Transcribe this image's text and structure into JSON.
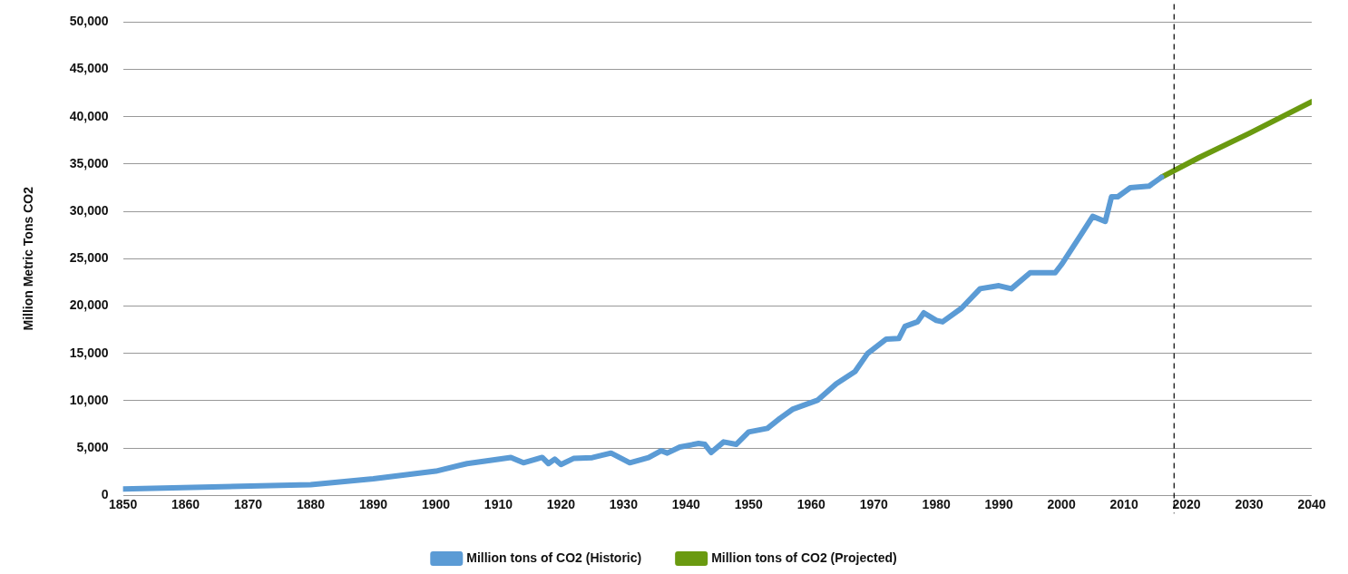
{
  "chart_data": {
    "type": "line",
    "ylabel": "Million Metric Tons CO2",
    "xlim": [
      1850,
      2040
    ],
    "xticks": [
      1850,
      1860,
      1870,
      1880,
      1890,
      1900,
      1910,
      1920,
      1930,
      1940,
      1950,
      1960,
      1970,
      1980,
      1990,
      2000,
      2010,
      2020,
      2030,
      2040
    ],
    "ylim": [
      0,
      50000
    ],
    "yticks": [
      {
        "value": 0,
        "label": "0"
      },
      {
        "value": 5000,
        "label": "5,000"
      },
      {
        "value": 10000,
        "label": "10,000"
      },
      {
        "value": 15000,
        "label": "15,000"
      },
      {
        "value": 20000,
        "label": "20,000"
      },
      {
        "value": 25000,
        "label": "25,000"
      },
      {
        "value": 30000,
        "label": "30,000"
      },
      {
        "value": 35000,
        "label": "35,000"
      },
      {
        "value": 40000,
        "label": "40,000"
      },
      {
        "value": 45000,
        "label": "45,000"
      },
      {
        "value": 50000,
        "label": "50,000"
      }
    ],
    "grid": "y",
    "legend": "bottom",
    "marker": "none",
    "line_style": "solid",
    "ref_lines": [
      {
        "axis": "x",
        "value": 2018,
        "color": "#000000",
        "line_style": "dashed"
      }
    ],
    "series": [
      {
        "name": "Million tons of CO2 (Historic)",
        "color": "#5b9bd5",
        "x": [
          1850,
          1880,
          1890,
          1900,
          1905,
          1912,
          1914,
          1917,
          1918,
          1919,
          1920,
          1922,
          1925,
          1928,
          1931,
          1934,
          1936,
          1937,
          1939,
          1942,
          1943,
          1944,
          1946,
          1948,
          1950,
          1953,
          1955,
          1957,
          1959,
          1961,
          1964,
          1967,
          1969,
          1972,
          1974,
          1975,
          1977,
          1978,
          1980,
          1981,
          1984,
          1987,
          1990,
          1992,
          1995,
          1999,
          2000,
          2003,
          2005,
          2007,
          2008,
          2009,
          2011,
          2014,
          2016
        ],
        "values": [
          670,
          1120,
          1750,
          2550,
          3350,
          3990,
          3440,
          4000,
          3350,
          3820,
          3250,
          3890,
          3980,
          4460,
          3440,
          3980,
          4710,
          4460,
          5100,
          5480,
          5380,
          4520,
          5640,
          5380,
          6690,
          7070,
          8130,
          9080,
          9560,
          10040,
          11790,
          13070,
          14980,
          16510,
          16570,
          17850,
          18330,
          19280,
          18480,
          18330,
          19760,
          21830,
          22150,
          21830,
          23520,
          23520,
          24380,
          27410,
          29470,
          28940,
          31550,
          31550,
          32500,
          32670,
          33620
        ]
      },
      {
        "name": "Million tons of CO2 (Projected)",
        "color": "#6a9a10",
        "x": [
          2016,
          2022,
          2030,
          2040
        ],
        "values": [
          33620,
          35690,
          38240,
          41590
        ]
      }
    ]
  }
}
